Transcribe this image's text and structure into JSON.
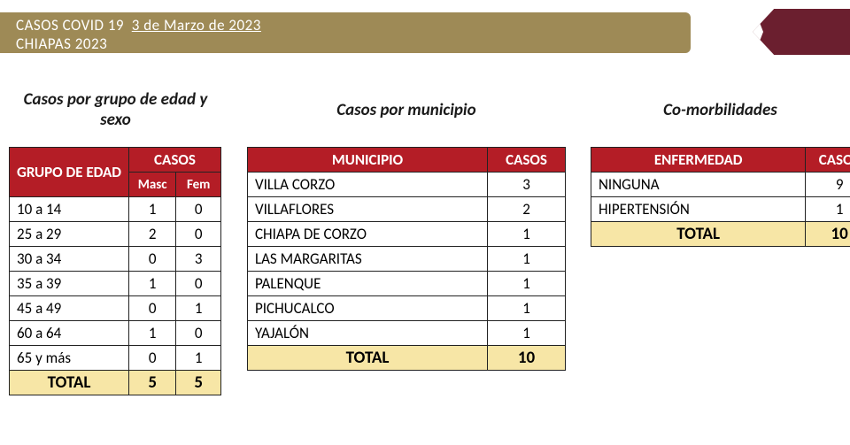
{
  "header": {
    "prefix": "CASOS COVID 19",
    "date": "3 de Marzo de 2023",
    "line2": "CHIAPAS  2023"
  },
  "colors": {
    "band": "#9e8a56",
    "accent": "#6b1f2f",
    "table_header": "#b41d26",
    "total_row": "#f7e6a6"
  },
  "age_sex": {
    "title": "Casos por grupo de edad y sexo",
    "col_group": "GRUPO DE EDAD",
    "col_cases": "CASOS",
    "sub_masc": "Masc",
    "sub_fem": "Fem",
    "rows": [
      {
        "g": "10 a 14",
        "m": 1,
        "f": 0
      },
      {
        "g": "25 a 29",
        "m": 2,
        "f": 0
      },
      {
        "g": "30 a 34",
        "m": 0,
        "f": 3
      },
      {
        "g": "35 a 39",
        "m": 1,
        "f": 0
      },
      {
        "g": "45 a 49",
        "m": 0,
        "f": 1
      },
      {
        "g": "60 a 64",
        "m": 1,
        "f": 0
      },
      {
        "g": "65 y más",
        "m": 0,
        "f": 1
      }
    ],
    "total_label": "TOTAL",
    "total_m": 5,
    "total_f": 5
  },
  "muni": {
    "title": "Casos por municipio",
    "col_muni": "MUNICIPIO",
    "col_cases": "CASOS",
    "rows": [
      {
        "n": "VILLA CORZO",
        "c": 3
      },
      {
        "n": "VILLAFLORES",
        "c": 2
      },
      {
        "n": "CHIAPA DE CORZO",
        "c": 1
      },
      {
        "n": "LAS MARGARITAS",
        "c": 1
      },
      {
        "n": "PALENQUE",
        "c": 1
      },
      {
        "n": "PICHUCALCO",
        "c": 1
      },
      {
        "n": "YAJALÓN",
        "c": 1
      }
    ],
    "total_label": "TOTAL",
    "total": 10
  },
  "comorb": {
    "title": "Co-morbilidades",
    "col_enf": "ENFERMEDAD",
    "col_cases": "CASOS",
    "rows": [
      {
        "n": "NINGUNA",
        "c": 9
      },
      {
        "n": "HIPERTENSIÓN",
        "c": 1
      }
    ],
    "total_label": "TOTAL",
    "total": 10
  }
}
